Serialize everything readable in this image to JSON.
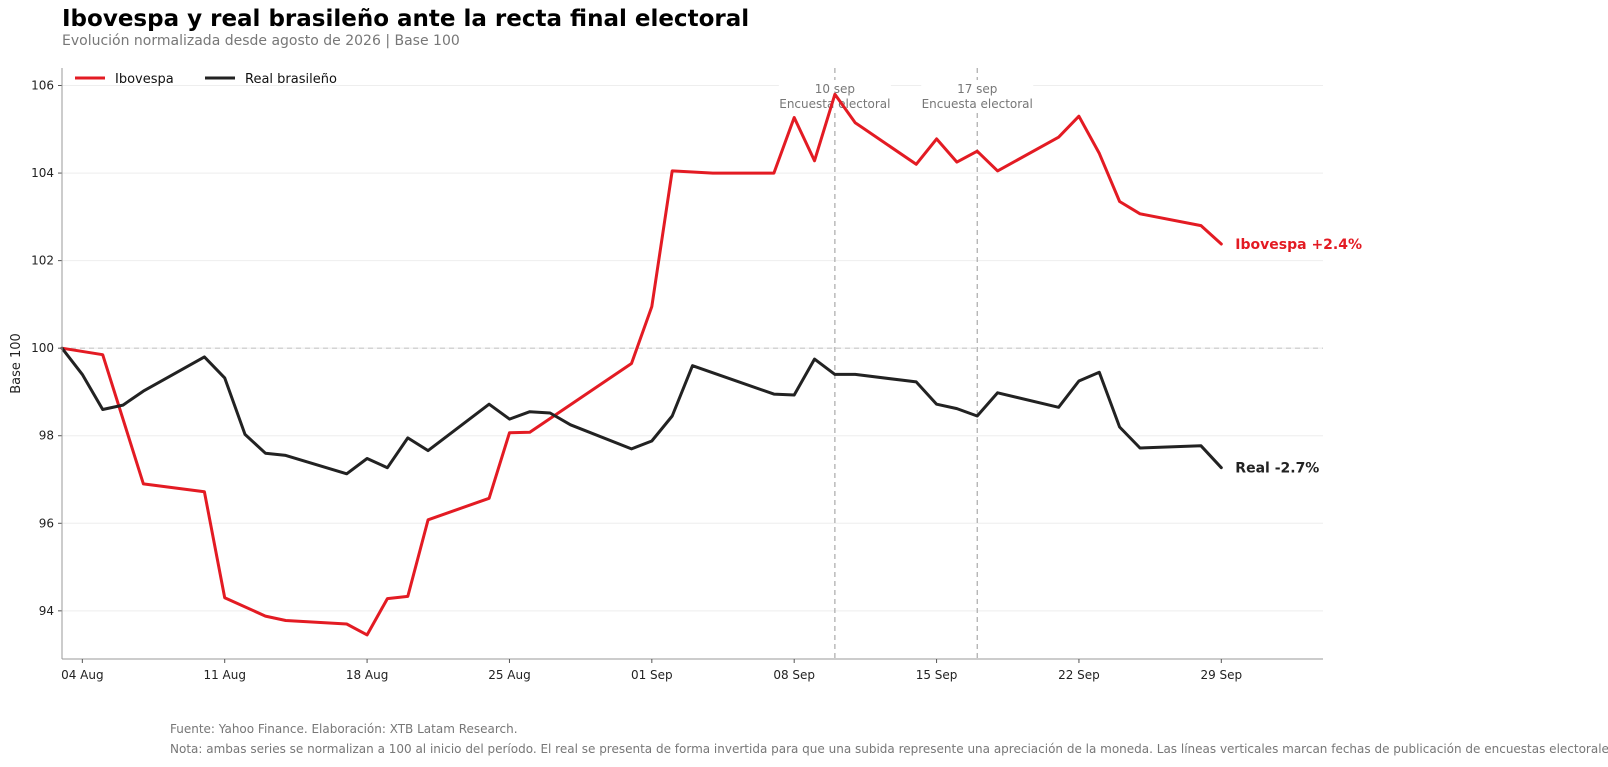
{
  "header": {
    "title": "Ibovespa y real brasileño ante la recta final electoral",
    "subtitle": "Evolución normalizada desde agosto de 2026 | Base 100"
  },
  "footer": {
    "source": "Fuente: Yahoo Finance. Elaboración: XTB Latam Research.",
    "note": "Nota: ambas series se normalizan a 100 al inicio del período. El real se presenta de forma invertida para que una subida represente una apreciación de la moneda. Las líneas verticales marcan fechas de publicación de encuestas electorales."
  },
  "chart_data": {
    "type": "line",
    "title": "Ibovespa y real brasileño ante la recta final electoral",
    "subtitle": "Evolución normalizada desde agosto de 2026 | Base 100",
    "xlabel": "",
    "ylabel": "Base 100",
    "x_range": [
      "2026-08-03",
      "2026-10-04"
    ],
    "ylim": [
      92.9,
      106.4
    ],
    "y_ticks": [
      94,
      96,
      98,
      100,
      102,
      104,
      106
    ],
    "x_ticks": [
      {
        "date": "2026-08-04",
        "label": "04 Aug"
      },
      {
        "date": "2026-08-11",
        "label": "11 Aug"
      },
      {
        "date": "2026-08-18",
        "label": "18 Aug"
      },
      {
        "date": "2026-08-25",
        "label": "25 Aug"
      },
      {
        "date": "2026-09-01",
        "label": "01 Sep"
      },
      {
        "date": "2026-09-08",
        "label": "08 Sep"
      },
      {
        "date": "2026-09-15",
        "label": "15 Sep"
      },
      {
        "date": "2026-09-22",
        "label": "22 Sep"
      },
      {
        "date": "2026-09-29",
        "label": "29 Sep"
      }
    ],
    "grid": "horizontal",
    "legend": "top-left",
    "reference_line": 100,
    "series": [
      {
        "name": "Ibovespa",
        "color": "#e31b23",
        "end_label": "Ibovespa  +2.4%",
        "points": [
          [
            "2026-08-03",
            100.0
          ],
          [
            "2026-08-05",
            99.85
          ],
          [
            "2026-08-07",
            96.9
          ],
          [
            "2026-08-10",
            96.72
          ],
          [
            "2026-08-11",
            94.3
          ],
          [
            "2026-08-13",
            93.88
          ],
          [
            "2026-08-14",
            93.78
          ],
          [
            "2026-08-17",
            93.7
          ],
          [
            "2026-08-18",
            93.45
          ],
          [
            "2026-08-19",
            94.28
          ],
          [
            "2026-08-20",
            94.33
          ],
          [
            "2026-08-21",
            96.08
          ],
          [
            "2026-08-24",
            96.57
          ],
          [
            "2026-08-25",
            98.07
          ],
          [
            "2026-08-26",
            98.08
          ],
          [
            "2026-08-31",
            99.65
          ],
          [
            "2026-09-01",
            100.95
          ],
          [
            "2026-09-02",
            104.05
          ],
          [
            "2026-09-04",
            104.0
          ],
          [
            "2026-09-07",
            104.0
          ],
          [
            "2026-09-08",
            105.27
          ],
          [
            "2026-09-09",
            104.28
          ],
          [
            "2026-09-10",
            105.8
          ],
          [
            "2026-09-11",
            105.15
          ],
          [
            "2026-09-14",
            104.2
          ],
          [
            "2026-09-15",
            104.78
          ],
          [
            "2026-09-16",
            104.25
          ],
          [
            "2026-09-17",
            104.5
          ],
          [
            "2026-09-18",
            104.05
          ],
          [
            "2026-09-21",
            104.82
          ],
          [
            "2026-09-22",
            105.3
          ],
          [
            "2026-09-23",
            104.45
          ],
          [
            "2026-09-24",
            103.35
          ],
          [
            "2026-09-25",
            103.07
          ],
          [
            "2026-09-28",
            102.8
          ],
          [
            "2026-09-29",
            102.38
          ]
        ]
      },
      {
        "name": "Real brasileño",
        "color": "#222222",
        "end_label": "Real  -2.7%",
        "points": [
          [
            "2026-08-03",
            100.0
          ],
          [
            "2026-08-04",
            99.4
          ],
          [
            "2026-08-05",
            98.6
          ],
          [
            "2026-08-06",
            98.7
          ],
          [
            "2026-08-07",
            99.02
          ],
          [
            "2026-08-10",
            99.8
          ],
          [
            "2026-08-11",
            99.32
          ],
          [
            "2026-08-12",
            98.03
          ],
          [
            "2026-08-13",
            97.6
          ],
          [
            "2026-08-14",
            97.55
          ],
          [
            "2026-08-17",
            97.13
          ],
          [
            "2026-08-18",
            97.48
          ],
          [
            "2026-08-19",
            97.27
          ],
          [
            "2026-08-20",
            97.95
          ],
          [
            "2026-08-21",
            97.66
          ],
          [
            "2026-08-24",
            98.72
          ],
          [
            "2026-08-25",
            98.38
          ],
          [
            "2026-08-26",
            98.55
          ],
          [
            "2026-08-27",
            98.52
          ],
          [
            "2026-08-28",
            98.25
          ],
          [
            "2026-08-31",
            97.7
          ],
          [
            "2026-09-01",
            97.88
          ],
          [
            "2026-09-02",
            98.45
          ],
          [
            "2026-09-03",
            99.6
          ],
          [
            "2026-09-07",
            98.95
          ],
          [
            "2026-09-08",
            98.93
          ],
          [
            "2026-09-09",
            99.75
          ],
          [
            "2026-09-10",
            99.4
          ],
          [
            "2026-09-11",
            99.4
          ],
          [
            "2026-09-14",
            99.23
          ],
          [
            "2026-09-15",
            98.72
          ],
          [
            "2026-09-16",
            98.62
          ],
          [
            "2026-09-17",
            98.45
          ],
          [
            "2026-09-18",
            98.98
          ],
          [
            "2026-09-21",
            98.65
          ],
          [
            "2026-09-22",
            99.25
          ],
          [
            "2026-09-23",
            99.45
          ],
          [
            "2026-09-24",
            98.2
          ],
          [
            "2026-09-25",
            97.72
          ],
          [
            "2026-09-28",
            97.77
          ],
          [
            "2026-09-29",
            97.27
          ]
        ]
      }
    ],
    "annotations": [
      {
        "date": "2026-09-10",
        "label_date": "10 sep",
        "label_text": "Encuesta electoral"
      },
      {
        "date": "2026-09-17",
        "label_date": "17 sep",
        "label_text": "Encuesta electoral"
      }
    ]
  }
}
